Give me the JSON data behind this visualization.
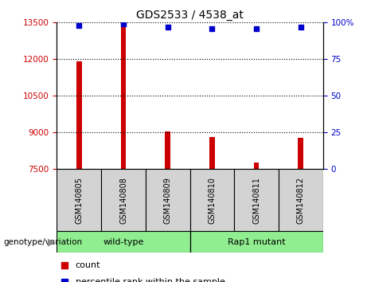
{
  "title": "GDS2533 / 4538_at",
  "samples": [
    "GSM140805",
    "GSM140808",
    "GSM140809",
    "GSM140810",
    "GSM140811",
    "GSM140812"
  ],
  "counts": [
    11900,
    13450,
    9050,
    8820,
    7770,
    8780
  ],
  "percentile_ranks": [
    98,
    99,
    97,
    96,
    96,
    97
  ],
  "ylim_left": [
    7500,
    13500
  ],
  "ylim_right": [
    0,
    100
  ],
  "yticks_left": [
    7500,
    9000,
    10500,
    12000,
    13500
  ],
  "yticks_right": [
    0,
    25,
    50,
    75,
    100
  ],
  "bar_color": "#cc0000",
  "dot_color": "#0000cc",
  "legend_count_label": "count",
  "legend_percentile_label": "percentile rank within the sample",
  "tick_label_color_left": "#cc0000",
  "tick_label_color_right": "#0000cc",
  "bar_width": 0.12,
  "group_box_color": "#d3d3d3",
  "group_label_box_color": "#90ee90",
  "group_box_outline": "#000000",
  "group_label": "genotype/variation",
  "group_ranges": [
    {
      "label": "wild-type",
      "start": 0,
      "end": 2
    },
    {
      "label": "Rap1 mutant",
      "start": 3,
      "end": 5
    }
  ]
}
